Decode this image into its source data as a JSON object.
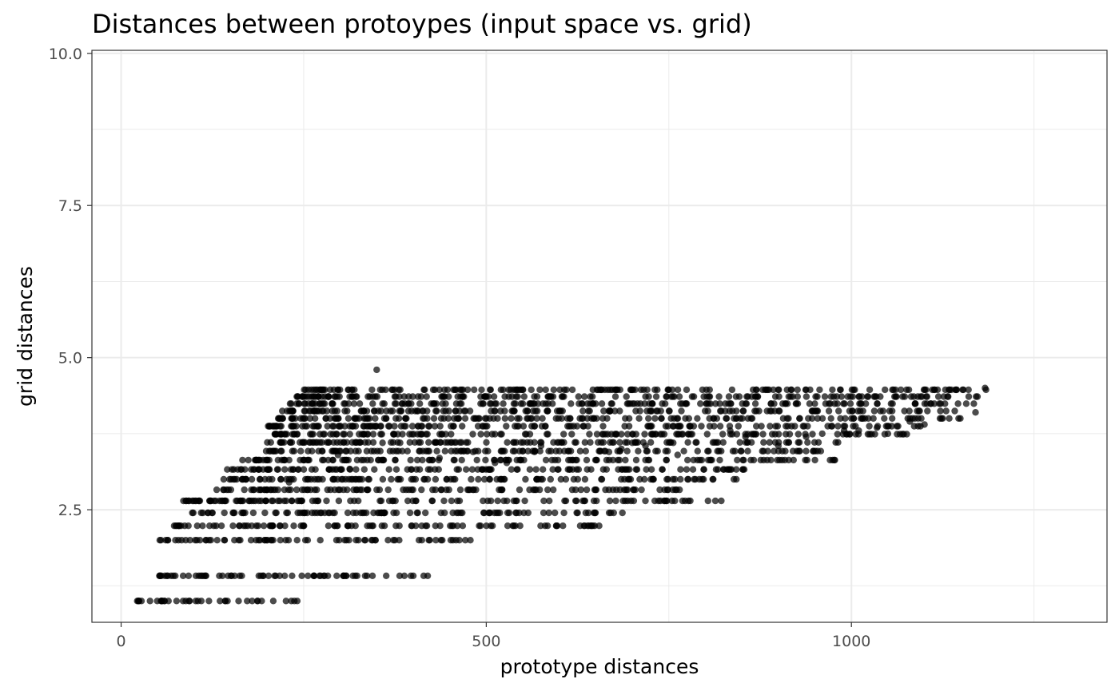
{
  "chart_data": {
    "type": "scatter",
    "title": "Distances between protoypes (input space vs. grid)",
    "xlabel": "prototype distances",
    "ylabel": "grid distances",
    "xlim": [
      -40,
      1350
    ],
    "ylim": [
      0.65,
      10.05
    ],
    "x_ticks": [
      0,
      500,
      1000
    ],
    "x_tick_labels": [
      "0",
      "500",
      "1000"
    ],
    "y_ticks": [
      2.5,
      5.0,
      7.5,
      10.0
    ],
    "y_tick_labels": [
      "2.5",
      "5.0",
      "7.5",
      "10.0"
    ],
    "grid": true,
    "point_color": "#000000",
    "point_opacity": 0.7,
    "levels": [
      {
        "y": 1.0,
        "xmin": 22,
        "xmax": 250
      },
      {
        "y": 1.414,
        "xmin": 50,
        "xmax": 445
      },
      {
        "y": 2.0,
        "xmin": 52,
        "xmax": 480
      },
      {
        "y": 2.236,
        "xmin": 70,
        "xmax": 660
      },
      {
        "y": 2.449,
        "xmin": 95,
        "xmax": 690
      },
      {
        "y": 2.646,
        "xmin": 85,
        "xmax": 825
      },
      {
        "y": 2.828,
        "xmin": 130,
        "xmax": 790
      },
      {
        "y": 3.0,
        "xmin": 140,
        "xmax": 845
      },
      {
        "y": 3.162,
        "xmin": 145,
        "xmax": 855
      },
      {
        "y": 3.317,
        "xmin": 165,
        "xmax": 980
      },
      {
        "y": 3.464,
        "xmin": 195,
        "xmax": 975
      },
      {
        "y": 3.606,
        "xmin": 200,
        "xmax": 1005
      },
      {
        "y": 3.742,
        "xmin": 210,
        "xmax": 1080
      },
      {
        "y": 3.873,
        "xmin": 200,
        "xmax": 1095
      },
      {
        "y": 4.0,
        "xmin": 215,
        "xmax": 1150
      },
      {
        "y": 4.123,
        "xmin": 220,
        "xmax": 1160
      },
      {
        "y": 4.243,
        "xmin": 230,
        "xmax": 1170
      },
      {
        "y": 4.359,
        "xmin": 240,
        "xmax": 1175
      },
      {
        "y": 4.472,
        "xmin": 250,
        "xmax": 1185
      }
    ],
    "highlights": [
      {
        "x": 350,
        "y": 4.8
      },
      {
        "x": 358,
        "y": 3.6
      },
      {
        "x": 382,
        "y": 3.6
      },
      {
        "x": 290,
        "y": 4.24
      },
      {
        "x": 272,
        "y": 4.24
      },
      {
        "x": 297,
        "y": 3.4
      },
      {
        "x": 230,
        "y": 2.95
      },
      {
        "x": 255,
        "y": 3.0
      },
      {
        "x": 313,
        "y": 3.17
      },
      {
        "x": 436,
        "y": 3.35
      },
      {
        "x": 482,
        "y": 3.45
      },
      {
        "x": 512,
        "y": 3.27
      },
      {
        "x": 528,
        "y": 3.27
      },
      {
        "x": 566,
        "y": 3.45
      },
      {
        "x": 575,
        "y": 3.55
      },
      {
        "x": 668,
        "y": 3.45
      },
      {
        "x": 685,
        "y": 3.5
      },
      {
        "x": 700,
        "y": 3.6
      },
      {
        "x": 718,
        "y": 3.55
      },
      {
        "x": 756,
        "y": 3.6
      },
      {
        "x": 762,
        "y": 3.4
      },
      {
        "x": 834,
        "y": 3.8
      },
      {
        "x": 855,
        "y": 3.7
      },
      {
        "x": 900,
        "y": 3.55
      },
      {
        "x": 938,
        "y": 3.7
      },
      {
        "x": 960,
        "y": 3.75
      },
      {
        "x": 990,
        "y": 3.8
      },
      {
        "x": 1010,
        "y": 3.8
      },
      {
        "x": 1035,
        "y": 3.85
      },
      {
        "x": 1050,
        "y": 3.75
      },
      {
        "x": 1080,
        "y": 3.95
      },
      {
        "x": 1100,
        "y": 3.9
      },
      {
        "x": 1125,
        "y": 4.0
      },
      {
        "x": 1170,
        "y": 4.1
      },
      {
        "x": 1183,
        "y": 4.5
      }
    ]
  }
}
